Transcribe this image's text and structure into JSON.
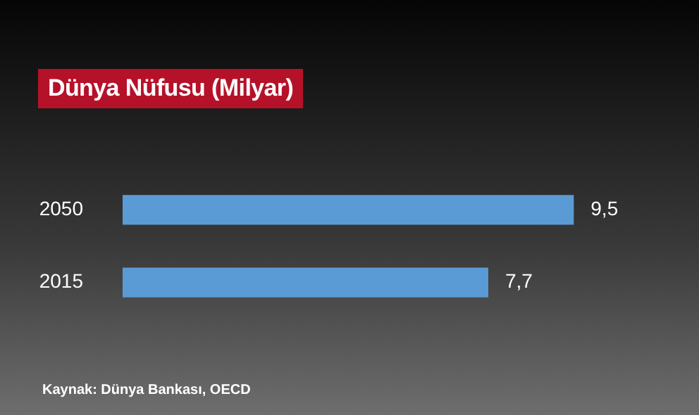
{
  "chart_data": {
    "type": "bar",
    "orientation": "horizontal",
    "title": "Dünya Nüfusu (Milyar)",
    "categories": [
      "2050",
      "2015"
    ],
    "values": [
      9.5,
      7.7
    ],
    "value_labels": [
      "9,5",
      "7,7"
    ],
    "color": "#5b9bd5",
    "legend": false,
    "tick_labels": "y",
    "annotations": [
      "Kaynak: Dünya Bankası, OECD"
    ]
  }
}
